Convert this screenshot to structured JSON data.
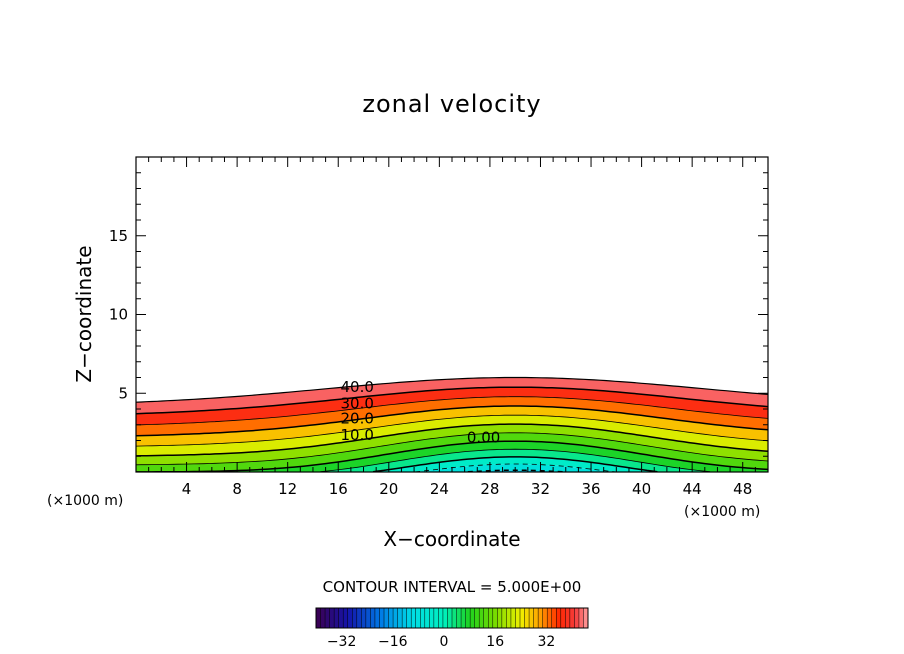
{
  "chart_data": {
    "type": "contour",
    "title": "zonal velocity",
    "xlabel": "X−coordinate",
    "ylabel": "Z−coordinate",
    "x_unit": "(×1000 m)",
    "y_unit": "(×1000 m)",
    "xlim": [
      0,
      50
    ],
    "ylim": [
      0,
      20
    ],
    "x_ticks": [
      4,
      8,
      12,
      16,
      20,
      24,
      28,
      32,
      36,
      40,
      44,
      48
    ],
    "y_ticks": [
      5,
      10,
      15
    ],
    "contour_interval_text": "CONTOUR INTERVAL = 5.000E+00",
    "contour_interval": 5,
    "contour_labels": [
      {
        "text": "40.0",
        "x": 17.5,
        "z": 5.4
      },
      {
        "text": "30.0",
        "x": 17.5,
        "z": 4.35
      },
      {
        "text": "20.0",
        "x": 17.5,
        "z": 3.4
      },
      {
        "text": "10.0",
        "x": 17.5,
        "z": 2.35
      },
      {
        "text": "0.00",
        "x": 27.5,
        "z": 2.2
      }
    ],
    "field_model": {
      "topography_peak_x": 30,
      "surface_height_min": 4.2,
      "surface_height_max": 6.0,
      "velocity_at_surface": 45,
      "velocity_at_ground_edge": 10,
      "velocity_at_ground_peak": -12
    },
    "colorbar": {
      "range": [
        -40,
        45
      ],
      "ticks": [
        -32,
        -16,
        0,
        16,
        32
      ]
    }
  }
}
